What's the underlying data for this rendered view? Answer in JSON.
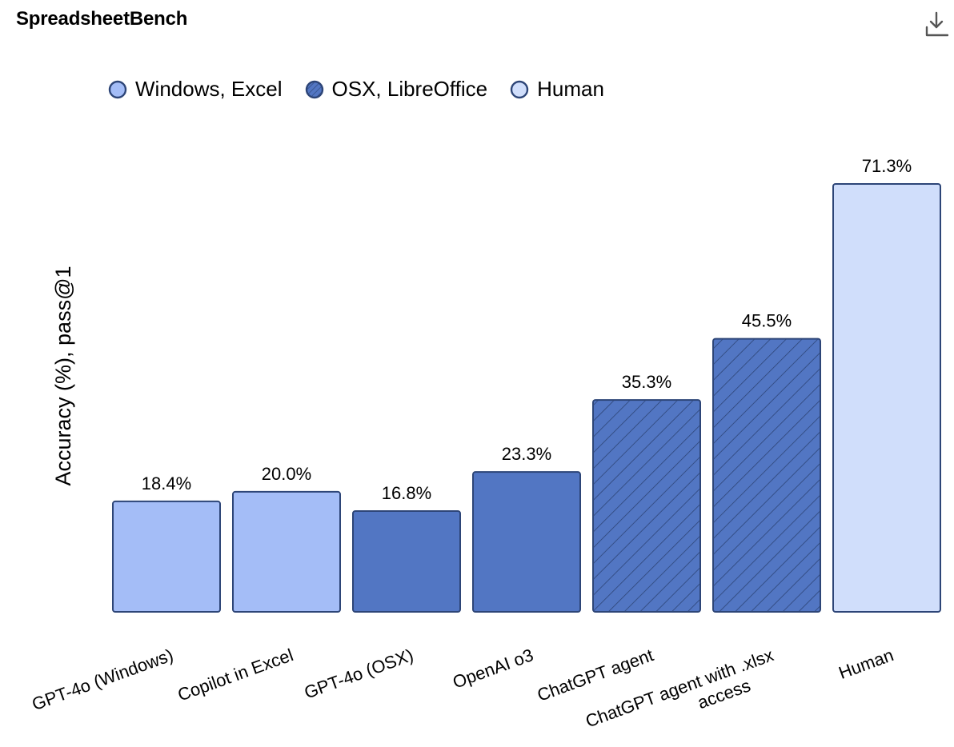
{
  "header": {
    "title": "SpreadsheetBench",
    "download_icon": "download-icon"
  },
  "colors": {
    "windows_excel": "#a4bdf7",
    "osx_libreoffice": "#5276c3",
    "human": "#d0defb",
    "stroke": "#2d4577",
    "hatch": "#2d4577"
  },
  "legend": [
    {
      "label": "Windows, Excel",
      "key": "windows_excel",
      "hatched": false
    },
    {
      "label": "OSX, LibreOffice",
      "key": "osx_libreoffice",
      "hatched": true
    },
    {
      "label": "Human",
      "key": "human",
      "hatched": false
    }
  ],
  "chart_data": {
    "type": "bar",
    "title": "SpreadsheetBench",
    "ylabel": "Accuracy (%), pass@1",
    "xlabel": "",
    "ylim": [
      0,
      75
    ],
    "grid": false,
    "legend_position": "top-left",
    "categories": [
      "GPT-4o (Windows)",
      "Copilot in Excel",
      "GPT-4o (OSX)",
      "OpenAI o3",
      "ChatGPT agent",
      "ChatGPT agent with .xlsx access",
      "Human"
    ],
    "category_lines": [
      [
        "GPT-4o (Windows)"
      ],
      [
        "Copilot in Excel"
      ],
      [
        "GPT-4o (OSX)"
      ],
      [
        "OpenAI o3"
      ],
      [
        "ChatGPT agent"
      ],
      [
        "ChatGPT agent with .xlsx",
        "access"
      ],
      [
        "Human"
      ]
    ],
    "values": [
      18.4,
      20.0,
      16.8,
      23.3,
      35.3,
      45.5,
      71.3
    ],
    "data_labels": [
      "18.4%",
      "20.0%",
      "16.8%",
      "23.3%",
      "35.3%",
      "45.5%",
      "71.3%"
    ],
    "groups": [
      "windows_excel",
      "windows_excel",
      "osx_libreoffice",
      "osx_libreoffice",
      "osx_libreoffice",
      "osx_libreoffice",
      "human"
    ],
    "hatched": [
      false,
      false,
      false,
      false,
      true,
      true,
      false
    ]
  }
}
